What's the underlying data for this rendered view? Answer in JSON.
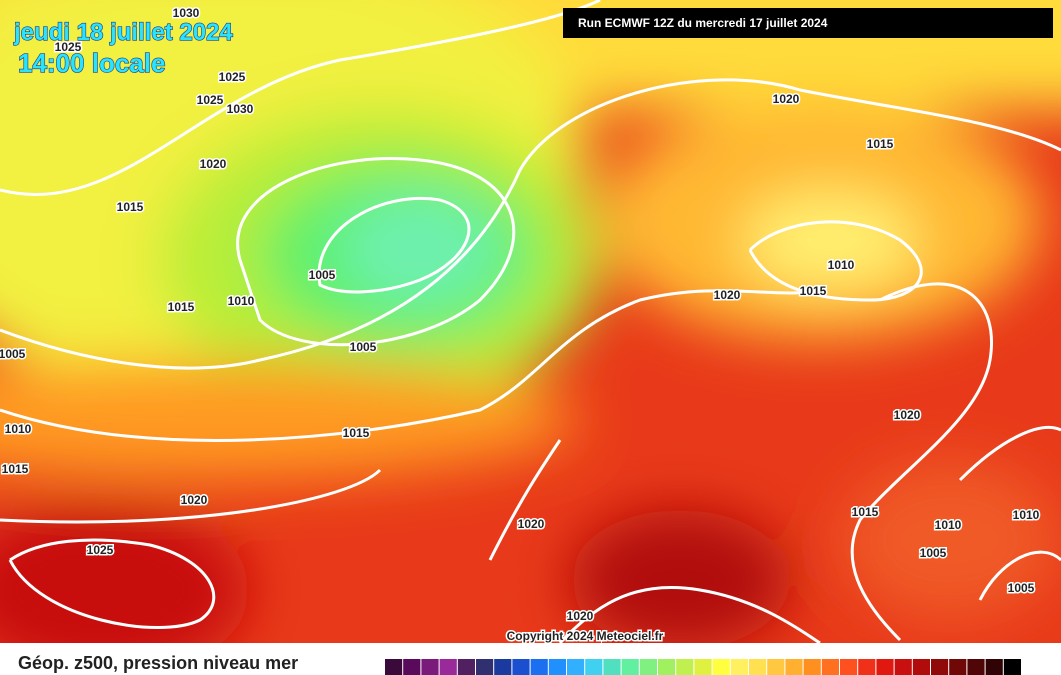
{
  "header": {
    "date": "jeudi 18 juillet 2024",
    "time": "14:00 locale",
    "run": "Run ECMWF 12Z du mercredi 17 juillet 2024"
  },
  "isobar_labels": [
    1030,
    1025,
    1025,
    1025,
    1030,
    1020,
    1015,
    1015,
    1010,
    1005,
    1005,
    1005,
    1010,
    1015,
    1015,
    1020,
    1025,
    1020,
    1015,
    1010,
    1020,
    1015,
    1020,
    1015,
    1010,
    1005,
    1010,
    1005,
    1020,
    1020
  ],
  "copyright": "Copyright 2024 Meteociel.fr",
  "legend": {
    "title": "Géop. z500, pression niveau mer"
  }
}
